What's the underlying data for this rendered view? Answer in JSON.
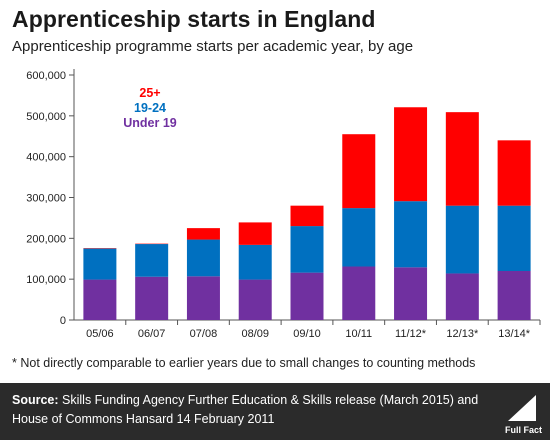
{
  "header": {
    "title": "Apprenticeship starts in England",
    "subtitle": "Apprenticeship programme starts per academic year, by age"
  },
  "footnote": "* Not directly comparable to earlier years due to small changes to counting methods",
  "footer": {
    "source_label": "Source:",
    "source_text": "Skills Funding Agency Further Education & Skills release (March 2015) and House of Commons Hansard 14 February 2011",
    "logo_text": "Full Fact"
  },
  "colors": {
    "under19": "#7030a0",
    "age19_24": "#0070c0",
    "age25plus": "#ff0000",
    "footer_bg": "#2b2b2b"
  },
  "chart_data": {
    "type": "bar",
    "stacked": true,
    "categories": [
      "05/06",
      "06/07",
      "07/08",
      "08/09",
      "09/10",
      "10/11",
      "11/12*",
      "12/13*",
      "13/14*"
    ],
    "series": [
      {
        "name": "Under 19",
        "color": "#7030a0",
        "values": [
          99000,
          106000,
          107000,
          99000,
          116000,
          131000,
          129000,
          114000,
          120000
        ]
      },
      {
        "name": "19-24",
        "color": "#0070c0",
        "values": [
          76000,
          80000,
          90000,
          85000,
          114000,
          143000,
          162000,
          166000,
          160000
        ]
      },
      {
        "name": "25+",
        "color": "#ff0000",
        "values": [
          1000,
          1000,
          28000,
          55000,
          50000,
          181000,
          230000,
          229000,
          160000
        ]
      }
    ],
    "legend_order": [
      "25+",
      "19-24",
      "Under 19"
    ],
    "legend_position": "top-left",
    "ylim": [
      0,
      600000
    ],
    "yticks": [
      0,
      100000,
      200000,
      300000,
      400000,
      500000,
      600000
    ],
    "ytick_labels": [
      "0",
      "100,000",
      "200,000",
      "300,000",
      "400,000",
      "500,000",
      "600,000"
    ],
    "grid": false
  }
}
